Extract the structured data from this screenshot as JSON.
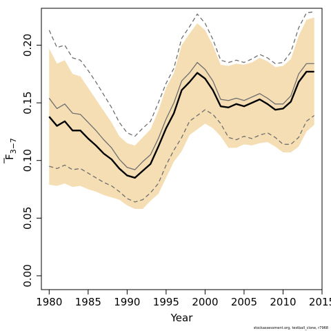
{
  "chart_data": {
    "type": "line",
    "xlabel": "Year",
    "ylabel": {
      "base": "F",
      "sub": "3−7"
    },
    "xlim": [
      1979,
      2015
    ],
    "ylim": [
      -0.012,
      0.232
    ],
    "x_ticks": [
      1980,
      1985,
      1990,
      1995,
      2000,
      2005,
      2010,
      2015
    ],
    "y_ticks": [
      0.0,
      0.05,
      0.1,
      0.15,
      0.2
    ],
    "y_tick_labels": [
      "0.00",
      "0.05",
      "0.10",
      "0.15",
      "0.20"
    ],
    "x": [
      1980,
      1981,
      1982,
      1983,
      1984,
      1985,
      1986,
      1987,
      1988,
      1989,
      1990,
      1991,
      1992,
      1993,
      1994,
      1995,
      1996,
      1997,
      1998,
      1999,
      2000,
      2001,
      2002,
      2003,
      2004,
      2005,
      2006,
      2007,
      2008,
      2009,
      2010,
      2011,
      2012,
      2013,
      2014
    ],
    "band": {
      "color": "#f5deb3",
      "upper": [
        0.197,
        0.184,
        0.187,
        0.175,
        0.173,
        0.163,
        0.153,
        0.143,
        0.133,
        0.121,
        0.115,
        0.113,
        0.12,
        0.127,
        0.143,
        0.163,
        0.176,
        0.2,
        0.21,
        0.219,
        0.213,
        0.2,
        0.183,
        0.182,
        0.184,
        0.183,
        0.185,
        0.189,
        0.186,
        0.181,
        0.182,
        0.188,
        0.208,
        0.222,
        0.224
      ],
      "lower": [
        0.079,
        0.078,
        0.08,
        0.077,
        0.078,
        0.075,
        0.073,
        0.07,
        0.068,
        0.066,
        0.061,
        0.058,
        0.058,
        0.065,
        0.071,
        0.085,
        0.099,
        0.108,
        0.122,
        0.127,
        0.132,
        0.128,
        0.121,
        0.111,
        0.111,
        0.114,
        0.113,
        0.115,
        0.116,
        0.112,
        0.107,
        0.107,
        0.112,
        0.125,
        0.131
      ]
    },
    "series": [
      {
        "role": "estimate",
        "color": "#000000",
        "style": "solid",
        "width": 2.4,
        "values": [
          0.138,
          0.13,
          0.134,
          0.126,
          0.126,
          0.119,
          0.113,
          0.106,
          0.101,
          0.093,
          0.087,
          0.085,
          0.091,
          0.097,
          0.112,
          0.128,
          0.141,
          0.161,
          0.168,
          0.176,
          0.171,
          0.161,
          0.147,
          0.146,
          0.149,
          0.147,
          0.15,
          0.153,
          0.149,
          0.144,
          0.145,
          0.151,
          0.168,
          0.177,
          0.177
        ]
      },
      {
        "role": "estimate-alt",
        "color": "#6e6e6e",
        "style": "solid",
        "width": 1.3,
        "values": [
          0.154,
          0.145,
          0.149,
          0.141,
          0.14,
          0.133,
          0.126,
          0.118,
          0.111,
          0.101,
          0.094,
          0.092,
          0.099,
          0.105,
          0.119,
          0.136,
          0.15,
          0.169,
          0.176,
          0.185,
          0.179,
          0.169,
          0.153,
          0.152,
          0.154,
          0.152,
          0.155,
          0.158,
          0.154,
          0.149,
          0.149,
          0.156,
          0.175,
          0.184,
          0.184
        ]
      },
      {
        "role": "upper-bound",
        "color": "#6e6e6e",
        "style": "dashed",
        "width": 1.3,
        "values": [
          0.213,
          0.198,
          0.2,
          0.189,
          0.187,
          0.178,
          0.168,
          0.157,
          0.146,
          0.133,
          0.124,
          0.121,
          0.128,
          0.134,
          0.15,
          0.167,
          0.18,
          0.206,
          0.216,
          0.227,
          0.219,
          0.205,
          0.187,
          0.185,
          0.187,
          0.185,
          0.188,
          0.192,
          0.189,
          0.184,
          0.185,
          0.194,
          0.215,
          0.228,
          0.229
        ]
      },
      {
        "role": "lower-bound",
        "color": "#6e6e6e",
        "style": "dashed",
        "width": 1.3,
        "values": [
          0.095,
          0.093,
          0.096,
          0.092,
          0.093,
          0.089,
          0.085,
          0.081,
          0.078,
          0.073,
          0.067,
          0.064,
          0.066,
          0.072,
          0.08,
          0.096,
          0.109,
          0.12,
          0.134,
          0.139,
          0.144,
          0.14,
          0.132,
          0.12,
          0.118,
          0.121,
          0.119,
          0.122,
          0.124,
          0.12,
          0.114,
          0.114,
          0.12,
          0.134,
          0.139
        ]
      }
    ],
    "grid": false,
    "legend": "none"
  },
  "footer": {
    "credit": "stockassessment.org,  testball_clone,  r7968"
  }
}
